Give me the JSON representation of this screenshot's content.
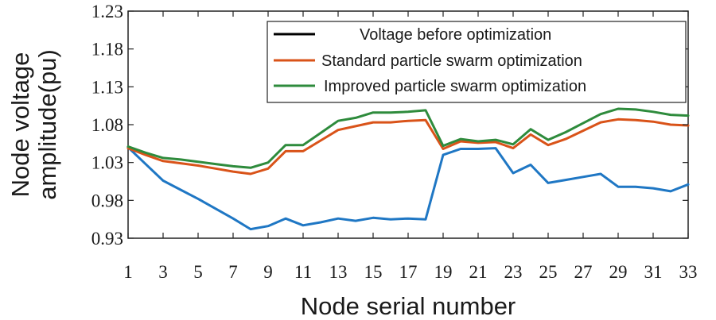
{
  "chart_data": {
    "type": "line",
    "xlabel": "Node serial number",
    "ylabel_line1": "Node voltage",
    "ylabel_line2": "amplitude(pu)",
    "xlim": [
      1,
      33
    ],
    "ylim": [
      0.93,
      1.23
    ],
    "xticks": [
      1,
      3,
      5,
      7,
      9,
      11,
      13,
      15,
      17,
      19,
      21,
      23,
      25,
      27,
      29,
      31,
      33
    ],
    "yticks": [
      "0.93",
      "0.98",
      "1.03",
      "1.08",
      "1.13",
      "1.18",
      "1.23"
    ],
    "grid": false,
    "legend_position": "top-right",
    "legend_entries": [
      {
        "label": "Voltage before optimization",
        "color": "#000000"
      },
      {
        "label": "Standard particle swarm optimization",
        "color": "#d95319"
      },
      {
        "label": "Improved particle swarm optimization",
        "color": "#2e8b3c"
      }
    ],
    "series": [
      {
        "color": "#1f77c4",
        "x": [
          1,
          2,
          3,
          4,
          5,
          6,
          7,
          8,
          9,
          10,
          11,
          12,
          13,
          14,
          15,
          16,
          17,
          18,
          19,
          20,
          21,
          22,
          23,
          24,
          25,
          26,
          27,
          28,
          29,
          30,
          31,
          32,
          33
        ],
        "values": [
          1.05,
          1.028,
          1.006,
          0.994,
          0.982,
          0.969,
          0.956,
          0.942,
          0.946,
          0.956,
          0.947,
          0.951,
          0.956,
          0.953,
          0.957,
          0.955,
          0.956,
          0.955,
          1.04,
          1.048,
          1.048,
          1.049,
          1.016,
          1.027,
          1.003,
          1.007,
          1.011,
          1.015,
          0.998,
          0.998,
          0.996,
          0.992,
          1.001
        ]
      },
      {
        "color": "#d95319",
        "x": [
          1,
          2,
          3,
          4,
          5,
          6,
          7,
          8,
          9,
          10,
          11,
          12,
          13,
          14,
          15,
          16,
          17,
          18,
          19,
          20,
          21,
          22,
          23,
          24,
          25,
          26,
          27,
          28,
          29,
          30,
          31,
          32,
          33
        ],
        "values": [
          1.049,
          1.04,
          1.032,
          1.029,
          1.026,
          1.022,
          1.018,
          1.015,
          1.022,
          1.045,
          1.045,
          1.059,
          1.073,
          1.078,
          1.083,
          1.083,
          1.085,
          1.086,
          1.048,
          1.058,
          1.056,
          1.057,
          1.049,
          1.067,
          1.053,
          1.061,
          1.072,
          1.083,
          1.087,
          1.086,
          1.084,
          1.08,
          1.079
        ]
      },
      {
        "color": "#2e8b3c",
        "x": [
          1,
          2,
          3,
          4,
          5,
          6,
          7,
          8,
          9,
          10,
          11,
          12,
          13,
          14,
          15,
          16,
          17,
          18,
          19,
          20,
          21,
          22,
          23,
          24,
          25,
          26,
          27,
          28,
          29,
          30,
          31,
          32,
          33
        ],
        "values": [
          1.051,
          1.043,
          1.036,
          1.034,
          1.031,
          1.028,
          1.025,
          1.023,
          1.03,
          1.053,
          1.053,
          1.069,
          1.085,
          1.089,
          1.096,
          1.096,
          1.097,
          1.099,
          1.052,
          1.061,
          1.058,
          1.06,
          1.054,
          1.074,
          1.06,
          1.07,
          1.082,
          1.094,
          1.101,
          1.1,
          1.097,
          1.093,
          1.092
        ]
      }
    ]
  }
}
